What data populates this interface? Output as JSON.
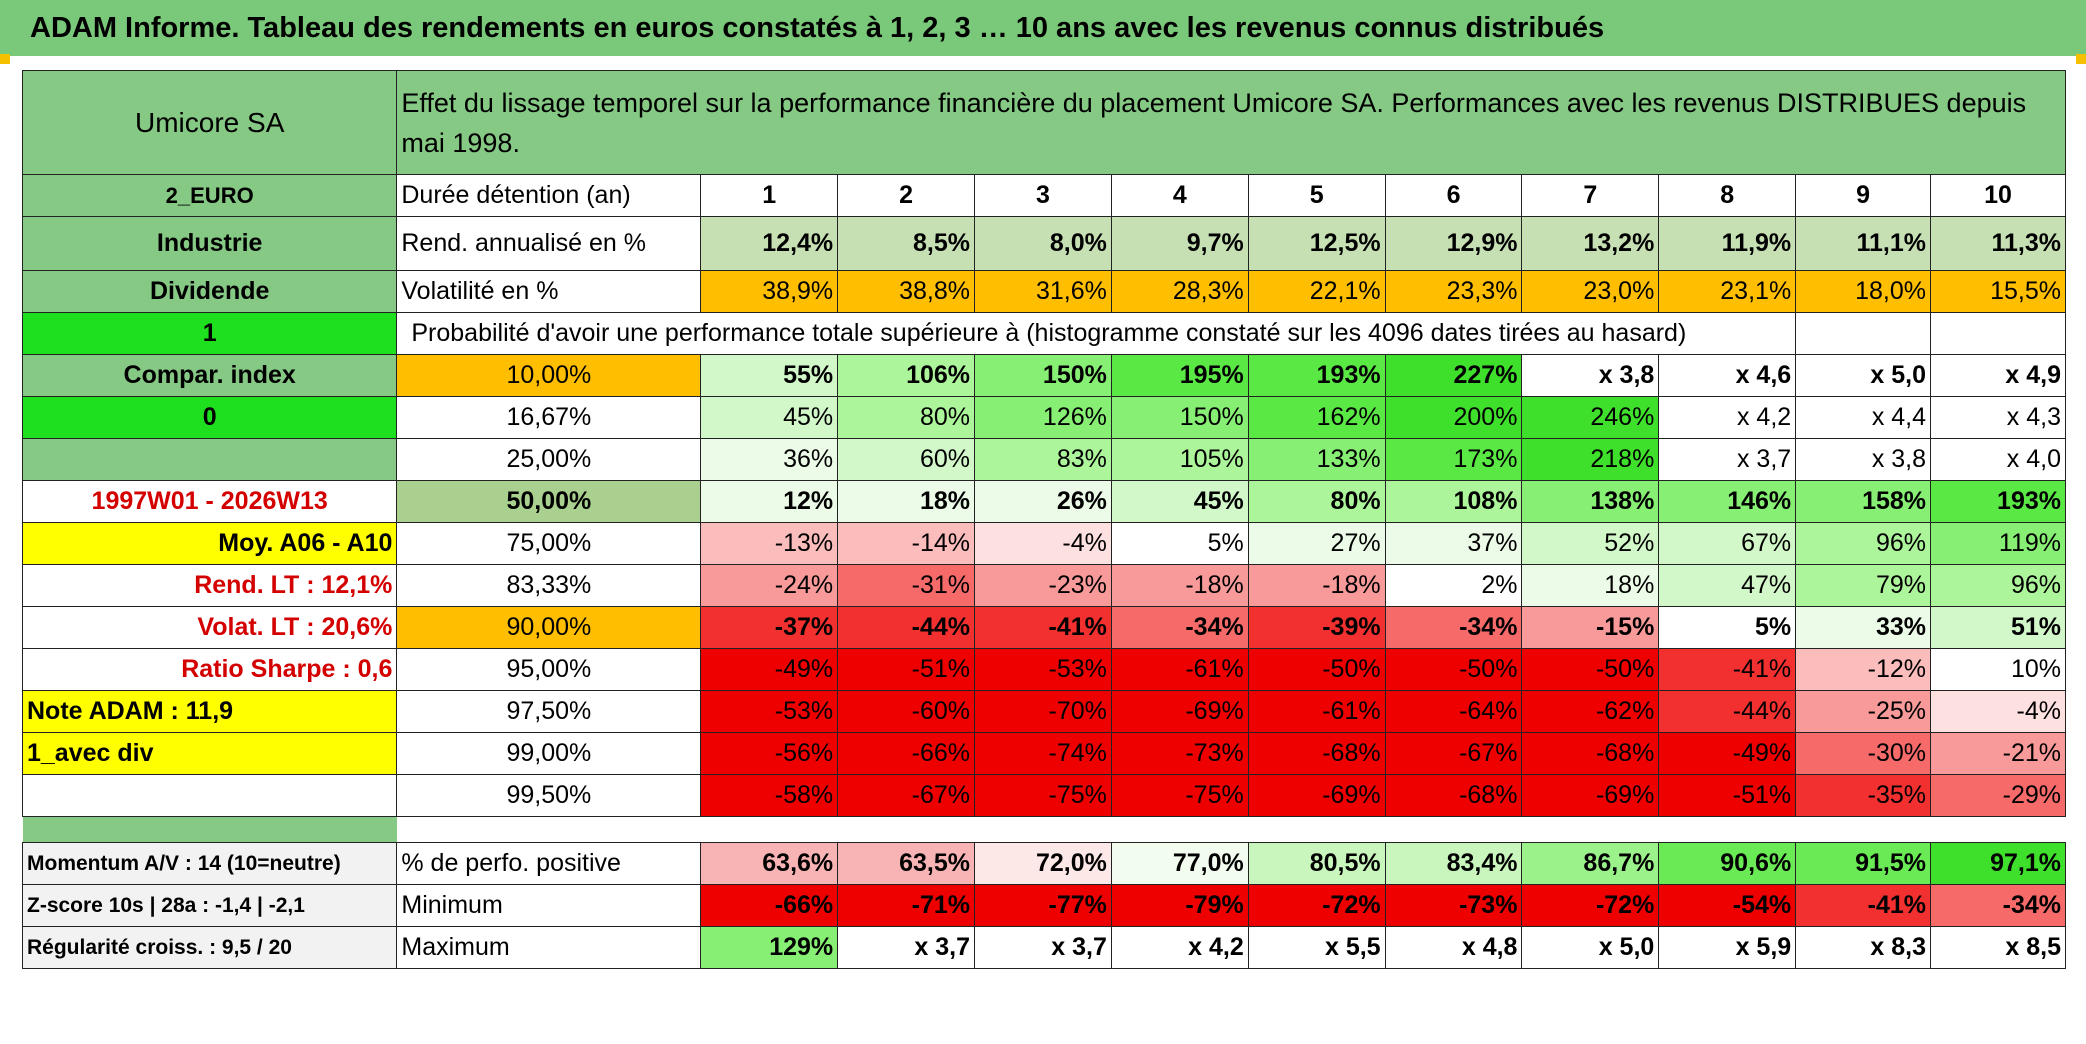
{
  "header": {
    "title": "ADAM Informe. Tableau des rendements en euros constatés à 1, 2, 3 … 10 ans avec les revenus connus distribués"
  },
  "side": {
    "company": "Umicore SA",
    "currency": "2_EURO",
    "sector": "Industrie",
    "distribution": "Dividende",
    "flag1": "1",
    "compar_index": "Compar. index",
    "flag0": "0",
    "period": "1997W01 - 2026W13",
    "avg": "Moy. A06 - A10",
    "rend_lt": "Rend. LT :   12,1%",
    "volat_lt": "Volat. LT :   20,6%",
    "sharpe": "Ratio Sharpe :   0,6",
    "note": "Note ADAM : 11,9",
    "mode": "1_avec div",
    "momentum": "Momentum A/V : 14 (10=neutre)",
    "zscore": "Z-score 10s | 28a : -1,4 | -2,1",
    "regularity": "Régularité croiss. : 9,5 / 20"
  },
  "description": "Effet du lissage temporel sur la performance financière du placement Umicore SA. Performances avec les revenus DISTRIBUES depuis mai 1998.",
  "duration": {
    "label": "Durée détention (an)",
    "years": [
      "1",
      "2",
      "3",
      "4",
      "5",
      "6",
      "7",
      "8",
      "9",
      "10"
    ]
  },
  "annualized": {
    "label": "Rend. annualisé en %",
    "values": [
      "12,4%",
      "8,5%",
      "8,0%",
      "9,7%",
      "12,5%",
      "12,9%",
      "13,2%",
      "11,9%",
      "11,1%",
      "11,3%"
    ]
  },
  "volatility": {
    "label": "Volatilité en %",
    "values": [
      "38,9%",
      "38,8%",
      "31,6%",
      "28,3%",
      "22,1%",
      "23,3%",
      "23,0%",
      "23,1%",
      "18,0%",
      "15,5%"
    ]
  },
  "probability_title": "Probabilité d'avoir une performance totale supérieure à (histogramme constaté sur les 4096 dates tirées au hasard)",
  "quantiles": [
    {
      "label": "10,00%",
      "values": [
        "55%",
        "106%",
        "150%",
        "195%",
        "193%",
        "227%",
        "x 3,8",
        "x 4,6",
        "x 5,0",
        "x 4,9"
      ]
    },
    {
      "label": "16,67%",
      "values": [
        "45%",
        "80%",
        "126%",
        "150%",
        "162%",
        "200%",
        "246%",
        "x 4,2",
        "x 4,4",
        "x 4,3"
      ]
    },
    {
      "label": "25,00%",
      "values": [
        "36%",
        "60%",
        "83%",
        "105%",
        "133%",
        "173%",
        "218%",
        "x 3,7",
        "x 3,8",
        "x 4,0"
      ]
    },
    {
      "label": "50,00%",
      "values": [
        "12%",
        "18%",
        "26%",
        "45%",
        "80%",
        "108%",
        "138%",
        "146%",
        "158%",
        "193%"
      ]
    },
    {
      "label": "75,00%",
      "values": [
        "-13%",
        "-14%",
        "-4%",
        "5%",
        "27%",
        "37%",
        "52%",
        "67%",
        "96%",
        "119%"
      ]
    },
    {
      "label": "83,33%",
      "values": [
        "-24%",
        "-31%",
        "-23%",
        "-18%",
        "-18%",
        "2%",
        "18%",
        "47%",
        "79%",
        "96%"
      ]
    },
    {
      "label": "90,00%",
      "values": [
        "-37%",
        "-44%",
        "-41%",
        "-34%",
        "-39%",
        "-34%",
        "-15%",
        "5%",
        "33%",
        "51%"
      ]
    },
    {
      "label": "95,00%",
      "values": [
        "-49%",
        "-51%",
        "-53%",
        "-61%",
        "-50%",
        "-50%",
        "-50%",
        "-41%",
        "-12%",
        "10%"
      ]
    },
    {
      "label": "97,50%",
      "values": [
        "-53%",
        "-60%",
        "-70%",
        "-69%",
        "-61%",
        "-64%",
        "-62%",
        "-44%",
        "-25%",
        "-4%"
      ]
    },
    {
      "label": "99,00%",
      "values": [
        "-56%",
        "-66%",
        "-74%",
        "-73%",
        "-68%",
        "-67%",
        "-68%",
        "-49%",
        "-30%",
        "-21%"
      ]
    },
    {
      "label": "99,50%",
      "values": [
        "-58%",
        "-67%",
        "-75%",
        "-75%",
        "-69%",
        "-68%",
        "-69%",
        "-51%",
        "-35%",
        "-29%"
      ]
    }
  ],
  "positive": {
    "label": "% de perfo. positive",
    "values": [
      "63,6%",
      "63,5%",
      "72,0%",
      "77,0%",
      "80,5%",
      "83,4%",
      "86,7%",
      "90,6%",
      "91,5%",
      "97,1%"
    ]
  },
  "minimum": {
    "label": "Minimum",
    "values": [
      "-66%",
      "-71%",
      "-77%",
      "-79%",
      "-72%",
      "-73%",
      "-72%",
      "-54%",
      "-41%",
      "-34%"
    ]
  },
  "maximum": {
    "label": "Maximum",
    "values": [
      "129%",
      "x 3,7",
      "x 3,7",
      "x 4,2",
      "x 5,5",
      "x 4,8",
      "x 5,0",
      "x 5,9",
      "x 8,3",
      "x 8,5"
    ]
  },
  "colors": {
    "header_green": "#7ac97a",
    "label_green": "#85c985",
    "bright_green": "#1ee01e",
    "orange": "#ffbf00",
    "yellow": "#ffff00",
    "alert_red": "#d40000"
  }
}
